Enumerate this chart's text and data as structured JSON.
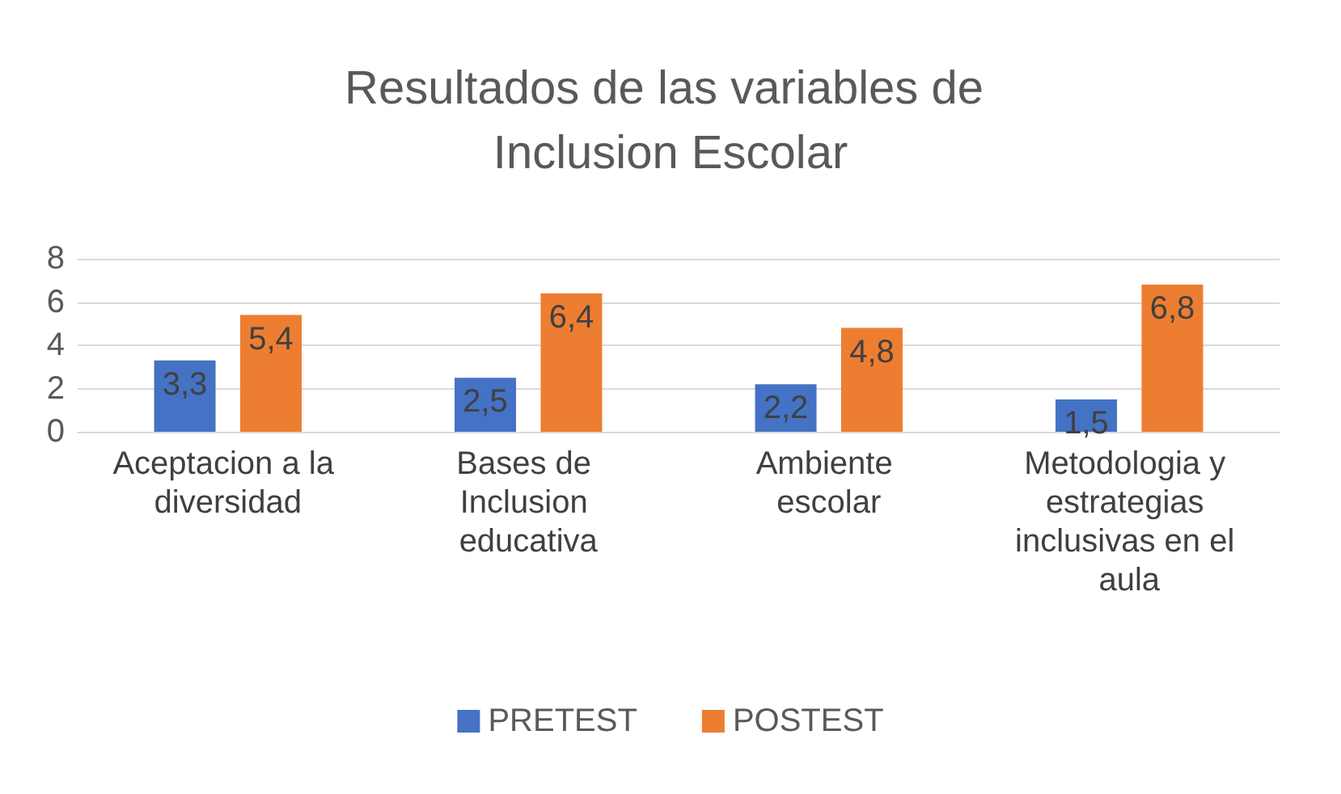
{
  "chart_data": {
    "type": "bar",
    "title": "Resultados de las variables de Inclusion Escolar",
    "categories": [
      "Aceptacion a la diversidad",
      "Bases de Inclusion educativa",
      "Ambiente escolar",
      "Metodologia y estrategias inclusivas en el aula"
    ],
    "series": [
      {
        "name": "PRETEST",
        "color": "#4472c4",
        "values": [
          3.3,
          2.5,
          2.2,
          1.5
        ],
        "value_labels": [
          "3,3",
          "2,5",
          "2,2",
          "1,5"
        ]
      },
      {
        "name": "POSTEST",
        "color": "#ed7d31",
        "values": [
          5.4,
          6.4,
          4.8,
          6.8
        ],
        "value_labels": [
          "5,4",
          "6,4",
          "4,8",
          "6,8"
        ]
      }
    ],
    "ylim": [
      0,
      8
    ],
    "yticks": [
      0,
      2,
      4,
      6,
      8
    ],
    "grid": "y",
    "legend": "bottom"
  }
}
